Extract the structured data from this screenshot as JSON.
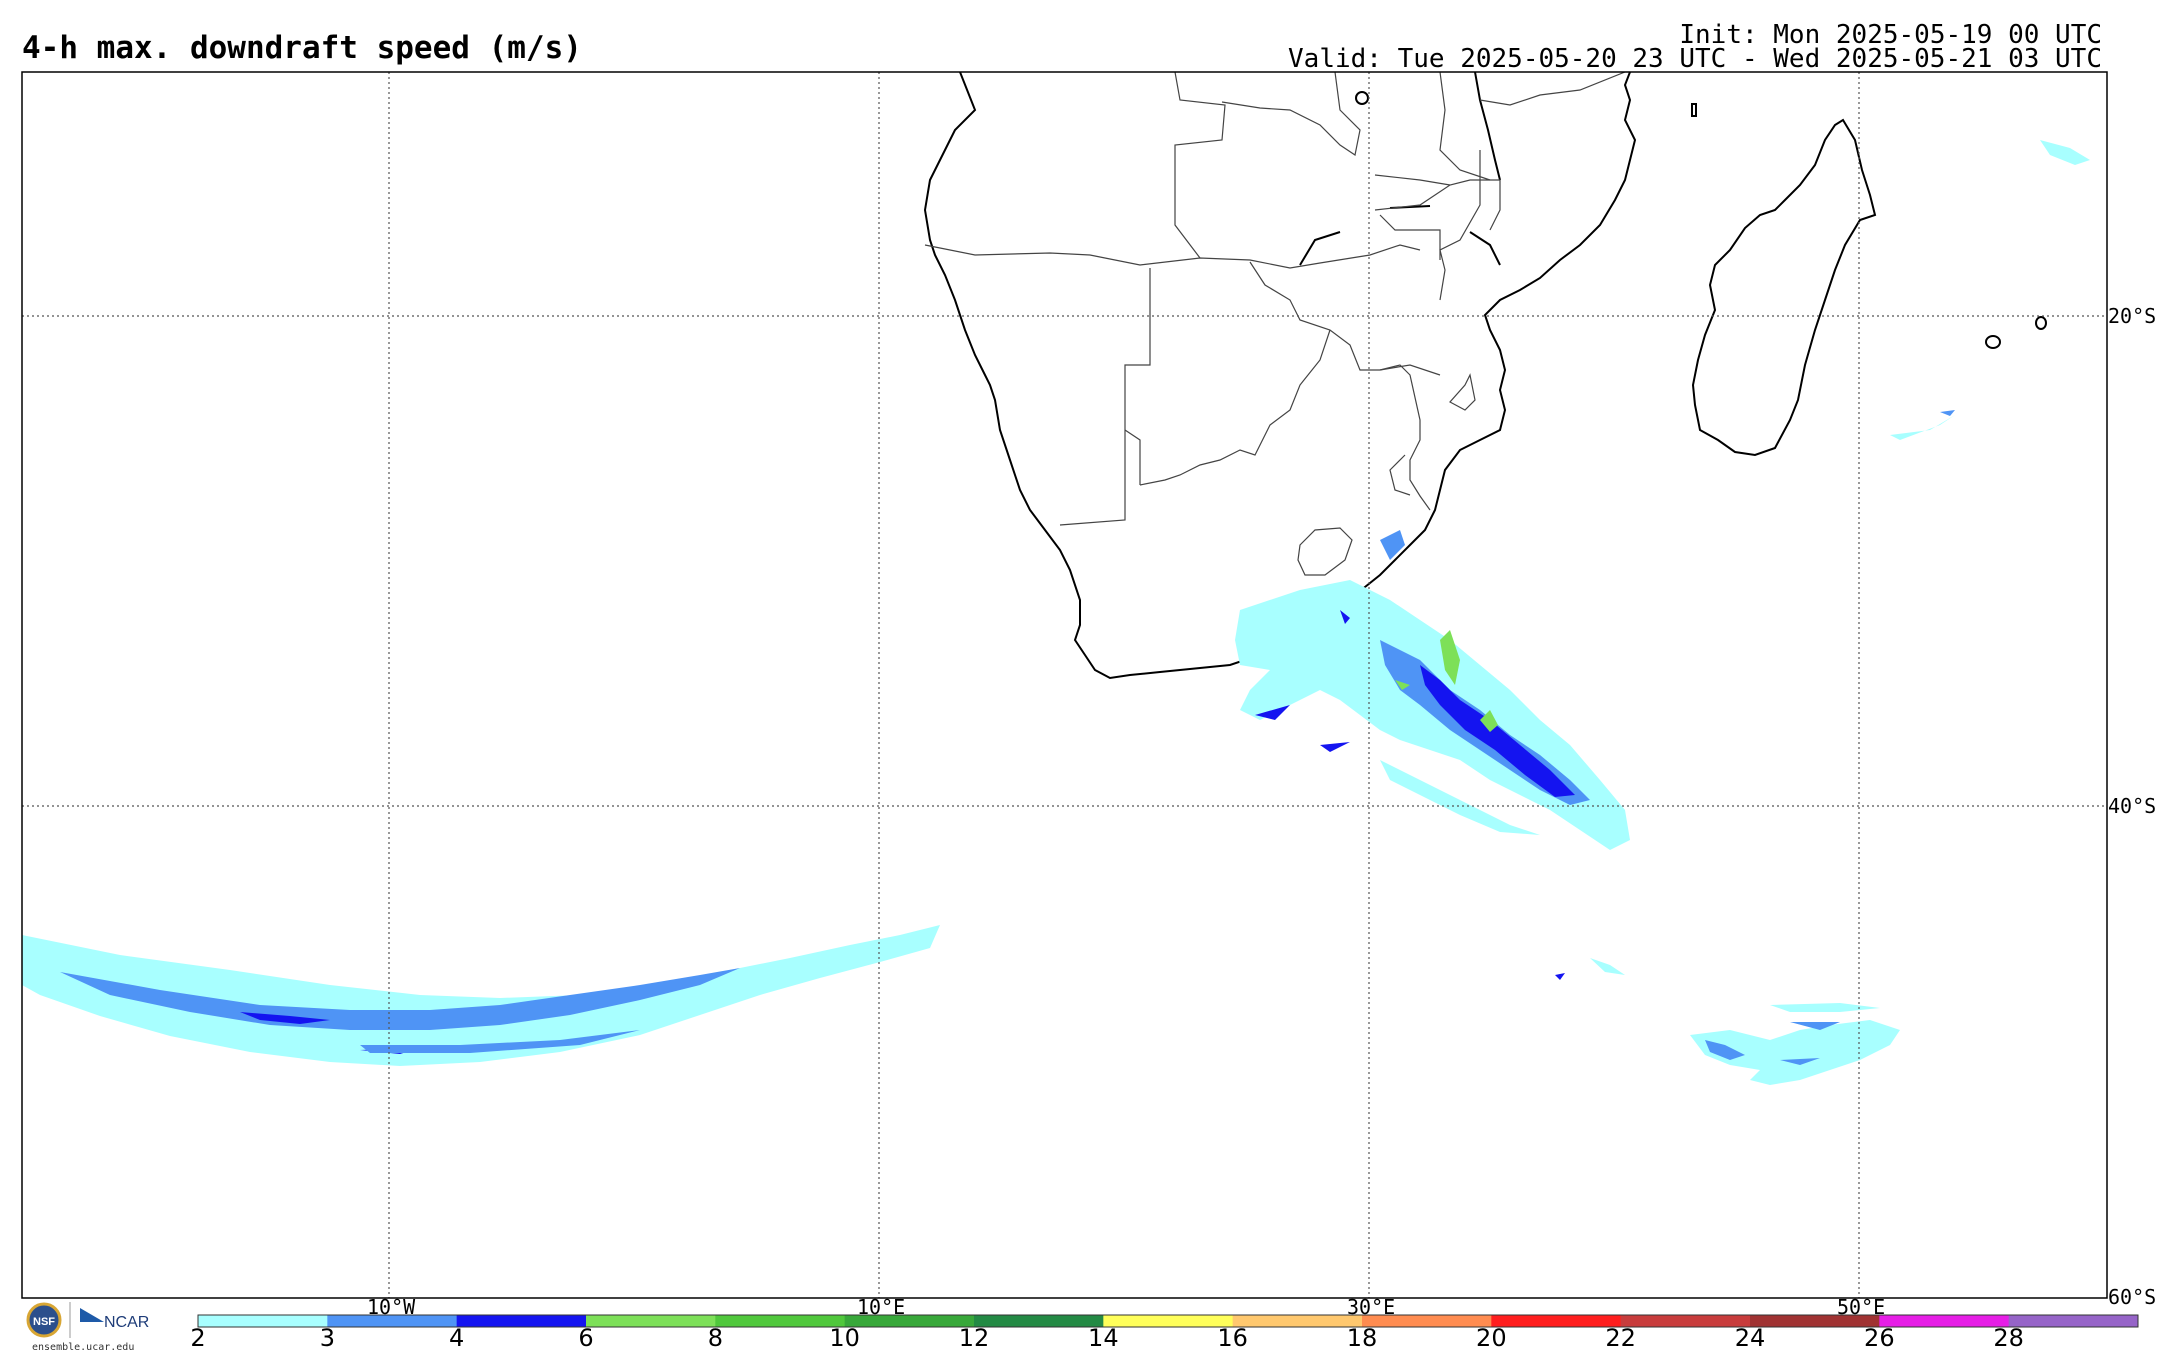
{
  "header": {
    "title": "4-h max. downdraft speed (m/s)",
    "init": "Init: Mon 2025-05-19 00 UTC",
    "valid": "Valid: Tue 2025-05-20 23 UTC - Wed 2025-05-21 03 UTC"
  },
  "map": {
    "lat_labels": [
      "20°S",
      "40°S",
      "60°S"
    ],
    "lon_labels": [
      "10°W",
      "10°E",
      "30°E",
      "50°E"
    ],
    "grid_style": "dotted"
  },
  "logos": {
    "nsf": "NSF",
    "ncar": "NCAR",
    "url": "ensemble.ucar.edu"
  },
  "colorbar": {
    "ticks": [
      "2",
      "3",
      "4",
      "6",
      "8",
      "10",
      "12",
      "14",
      "16",
      "18",
      "20",
      "22",
      "24",
      "26",
      "28"
    ],
    "colors": [
      "#a8ffff",
      "#4f94f5",
      "#1414f0",
      "#7de058",
      "#50c83c",
      "#38a83a",
      "#238a44",
      "#ffff5a",
      "#ffc86e",
      "#ff8c50",
      "#ff1e1e",
      "#c83c3c",
      "#a03232",
      "#e61ee6",
      "#9664c8"
    ]
  }
}
